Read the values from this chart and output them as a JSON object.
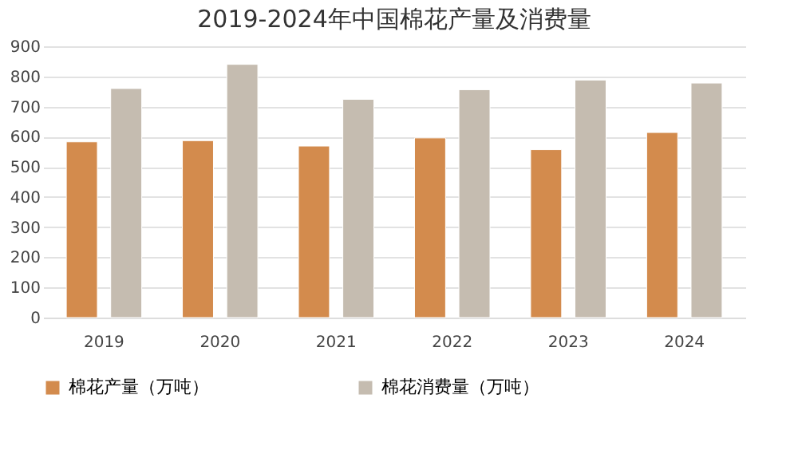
{
  "chart_data": {
    "type": "bar",
    "title": "2019-2024年中国棉花产量及消费量",
    "categories": [
      "2019",
      "2020",
      "2021",
      "2022",
      "2023",
      "2024"
    ],
    "series": [
      {
        "name": "棉花产量（万吨）",
        "color": "#d38b4d",
        "values": [
          583,
          587,
          569,
          596,
          557,
          614
        ]
      },
      {
        "name": "棉花消费量（万吨）",
        "color": "#c5bcb0",
        "values": [
          760,
          840,
          724,
          756,
          788,
          778
        ]
      }
    ],
    "ylim": [
      0,
      900
    ],
    "yticks": [
      0,
      100,
      200,
      300,
      400,
      500,
      600,
      700,
      800,
      900
    ],
    "grid": "y",
    "legend": "bottom"
  }
}
